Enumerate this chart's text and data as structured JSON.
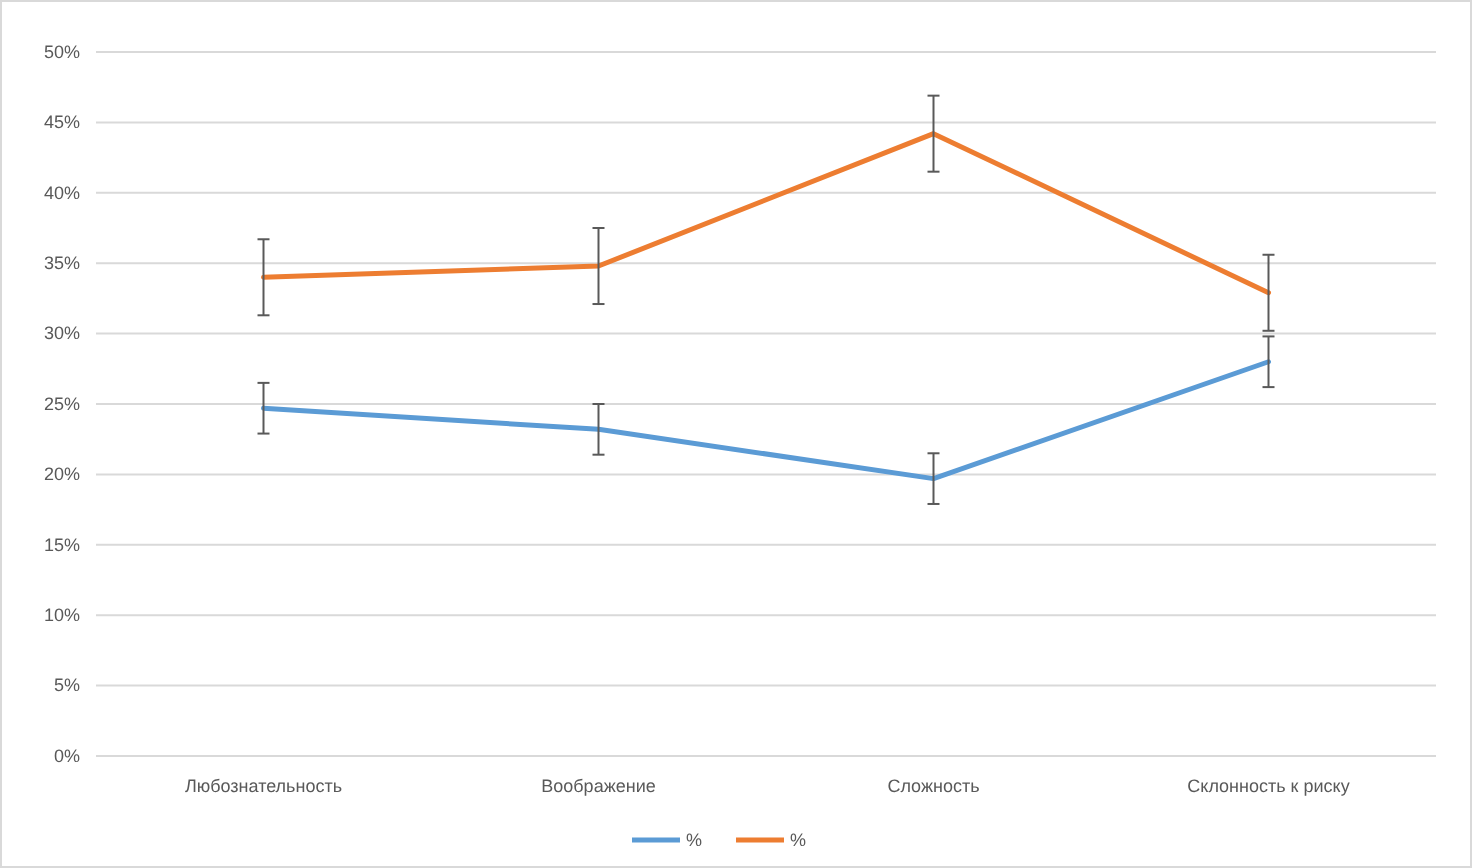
{
  "chart_data": {
    "type": "line",
    "categories": [
      "Любознательность",
      "Воображение",
      "Сложность",
      "Склонность к риску"
    ],
    "series": [
      {
        "name": "%",
        "color": "#5b9bd5",
        "values": [
          24.7,
          23.2,
          19.7,
          28.0
        ],
        "errors": [
          1.8,
          1.8,
          1.8,
          1.8
        ]
      },
      {
        "name": "%",
        "color": "#ed7d31",
        "values": [
          34.0,
          34.8,
          44.2,
          32.9
        ],
        "errors": [
          2.7,
          2.7,
          2.7,
          2.7
        ]
      }
    ],
    "ylim": [
      0,
      50
    ],
    "yticks": [
      {
        "value": 0,
        "label": "0%"
      },
      {
        "value": 5,
        "label": "5%"
      },
      {
        "value": 10,
        "label": "10%"
      },
      {
        "value": 15,
        "label": "15%"
      },
      {
        "value": 20,
        "label": "20%"
      },
      {
        "value": 25,
        "label": "25%"
      },
      {
        "value": 30,
        "label": "30%"
      },
      {
        "value": 35,
        "label": "35%"
      },
      {
        "value": 40,
        "label": "40%"
      },
      {
        "value": 45,
        "label": "45%"
      },
      {
        "value": 50,
        "label": "50%"
      }
    ],
    "grid": "y",
    "legend": "bottom",
    "marker": "none",
    "line_style": "solid"
  }
}
